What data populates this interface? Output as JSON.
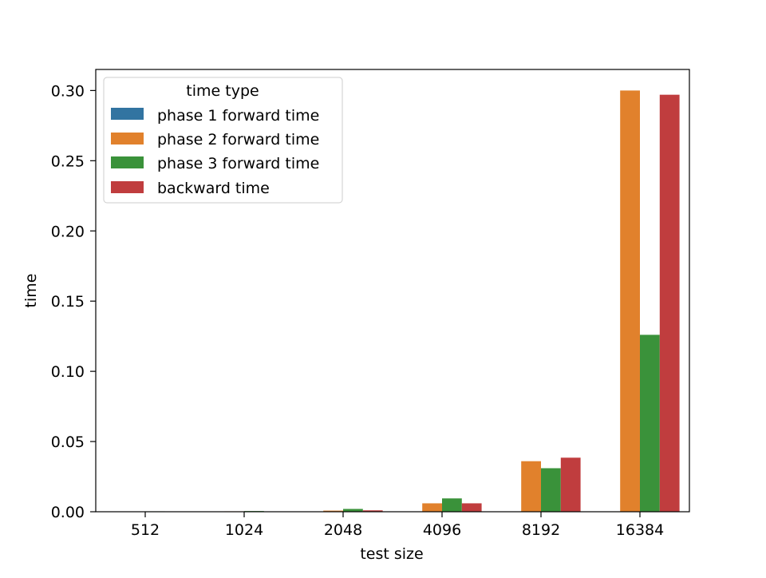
{
  "chart_data": {
    "type": "bar",
    "title": "",
    "xlabel": "test size",
    "ylabel": "time",
    "categories": [
      "512",
      "1024",
      "2048",
      "4096",
      "8192",
      "16384"
    ],
    "ylim": [
      0,
      0.315
    ],
    "yticks": [
      "0.00",
      "0.05",
      "0.10",
      "0.15",
      "0.20",
      "0.25",
      "0.30"
    ],
    "grid": false,
    "legend": {
      "title": "time type",
      "placement": "top-left"
    },
    "series": [
      {
        "name": "phase 1 forward time",
        "color": "#3274a1",
        "values": [
          0.0001,
          0.0001,
          0.0002,
          0.0002,
          0.0002,
          0.0002
        ]
      },
      {
        "name": "phase 2 forward time",
        "color": "#e1812c",
        "values": [
          0.0002,
          0.0003,
          0.0008,
          0.006,
          0.036,
          0.3
        ]
      },
      {
        "name": "phase 3 forward time",
        "color": "#3a923a",
        "values": [
          0.0003,
          0.0005,
          0.002,
          0.0095,
          0.031,
          0.126
        ]
      },
      {
        "name": "backward time",
        "color": "#c03d3e",
        "values": [
          0.0001,
          0.0002,
          0.001,
          0.006,
          0.0385,
          0.297
        ]
      }
    ]
  }
}
